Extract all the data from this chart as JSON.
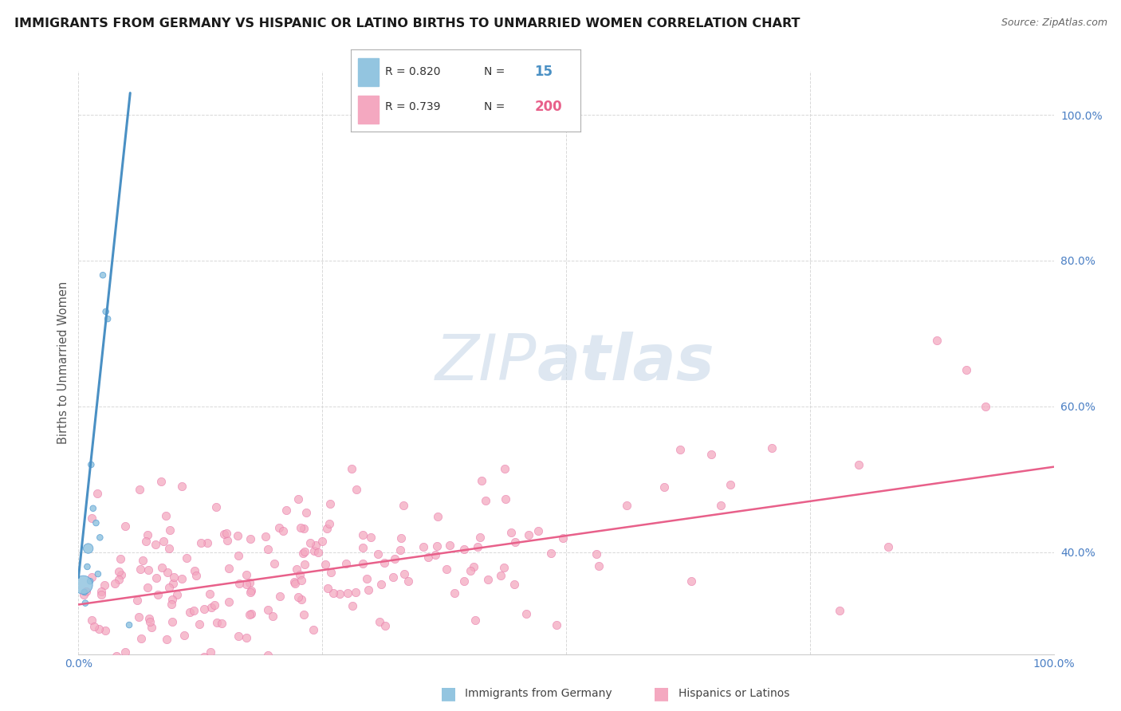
{
  "title": "IMMIGRANTS FROM GERMANY VS HISPANIC OR LATINO BIRTHS TO UNMARRIED WOMEN CORRELATION CHART",
  "source": "Source: ZipAtlas.com",
  "ylabel": "Births to Unmarried Women",
  "legend_label1": "Immigrants from Germany",
  "legend_label2": "Hispanics or Latinos",
  "R1": 0.82,
  "N1": 15,
  "R2": 0.739,
  "N2": 200,
  "color_blue": "#93c5e0",
  "color_pink": "#f4a8c0",
  "color_blue_line": "#4a90c4",
  "color_pink_line": "#e8608a",
  "color_blue_edge": "#5a9fd4",
  "color_pink_edge": "#e87aaa",
  "bg_color": "#ffffff",
  "grid_color": "#d8d8d8",
  "ytick_color": "#4a7fc4",
  "xtick_color": "#4a7fc4",
  "xlim": [
    0.0,
    1.0
  ],
  "ylim": [
    0.26,
    1.06
  ],
  "yticks": [
    0.4,
    0.6,
    0.8,
    1.0
  ],
  "ytick_labels": [
    "40.0%",
    "60.0%",
    "80.0%",
    "100.0%"
  ],
  "xticks": [
    0.0,
    1.0
  ],
  "xtick_labels": [
    "0.0%",
    "100.0%"
  ],
  "blue_trend_x": [
    0.0,
    0.053
  ],
  "blue_trend_y": [
    0.365,
    1.03
  ],
  "pink_trend_x": [
    0.0,
    1.0
  ],
  "pink_trend_y": [
    0.328,
    0.517
  ],
  "blue_points_x": [
    0.006,
    0.007,
    0.009,
    0.01,
    0.012,
    0.013,
    0.015,
    0.018,
    0.022,
    0.025,
    0.028,
    0.03,
    0.052,
    0.005,
    0.02
  ],
  "blue_points_y": [
    0.345,
    0.33,
    0.38,
    0.405,
    0.36,
    0.52,
    0.46,
    0.44,
    0.42,
    0.78,
    0.73,
    0.72,
    0.3,
    0.355,
    0.37
  ],
  "blue_sizes": [
    30,
    30,
    30,
    80,
    30,
    30,
    30,
    30,
    30,
    30,
    30,
    30,
    30,
    280,
    30
  ],
  "pink_seed": 42,
  "watermark_zip": "ZIP",
  "watermark_atlas": "atlas"
}
